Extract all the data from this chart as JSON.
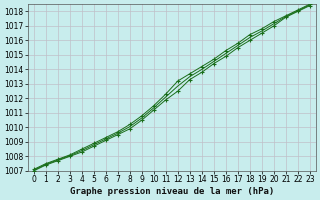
{
  "xlabel": "Graphe pression niveau de la mer (hPa)",
  "bg_color": "#c8eded",
  "grid_color": "#c0c0c8",
  "line_color": "#1a6e1a",
  "xlim": [
    0,
    23
  ],
  "ylim": [
    1007,
    1018.5
  ],
  "yticks": [
    1007,
    1008,
    1009,
    1010,
    1011,
    1012,
    1013,
    1014,
    1015,
    1016,
    1017,
    1018
  ],
  "xticks": [
    0,
    1,
    2,
    3,
    4,
    5,
    6,
    7,
    8,
    9,
    10,
    11,
    12,
    13,
    14,
    15,
    16,
    17,
    18,
    19,
    20,
    21,
    22,
    23
  ],
  "line1_x": [
    0,
    1,
    2,
    3,
    4,
    5,
    6,
    7,
    8,
    9,
    10,
    11,
    12,
    13,
    14,
    15,
    16,
    17,
    18,
    19,
    20,
    21,
    22,
    23
  ],
  "line1_y": [
    1007.0,
    1007.4,
    1007.7,
    1008.0,
    1008.3,
    1008.7,
    1009.1,
    1009.5,
    1009.9,
    1010.5,
    1011.2,
    1011.9,
    1012.5,
    1013.3,
    1013.8,
    1014.4,
    1014.9,
    1015.5,
    1016.0,
    1016.5,
    1017.0,
    1017.6,
    1018.0,
    1018.4
  ],
  "line2_x": [
    0,
    1,
    2,
    3,
    4,
    5,
    6,
    7,
    8,
    9,
    10,
    11,
    12,
    13,
    14,
    15,
    16,
    17,
    18,
    19,
    20,
    21,
    22,
    23
  ],
  "line2_y": [
    1007.1,
    1007.5,
    1007.8,
    1008.1,
    1008.5,
    1008.9,
    1009.3,
    1009.7,
    1010.2,
    1010.8,
    1011.5,
    1012.3,
    1013.2,
    1013.7,
    1014.2,
    1014.7,
    1015.3,
    1015.8,
    1016.4,
    1016.8,
    1017.3,
    1017.7,
    1018.1,
    1018.5
  ],
  "line3_x": [
    0,
    1,
    2,
    3,
    4,
    5,
    6,
    7,
    8,
    9,
    10,
    11,
    12,
    13,
    14,
    15,
    16,
    17,
    18,
    19,
    20,
    21,
    22,
    23
  ],
  "line3_y": [
    1007.05,
    1007.45,
    1007.75,
    1008.05,
    1008.4,
    1008.8,
    1009.2,
    1009.6,
    1010.05,
    1010.65,
    1011.35,
    1012.1,
    1012.85,
    1013.5,
    1014.0,
    1014.55,
    1015.1,
    1015.65,
    1016.2,
    1016.65,
    1017.15,
    1017.65,
    1018.05,
    1018.45
  ],
  "tick_fontsize": 5.5,
  "label_fontsize": 6.5
}
